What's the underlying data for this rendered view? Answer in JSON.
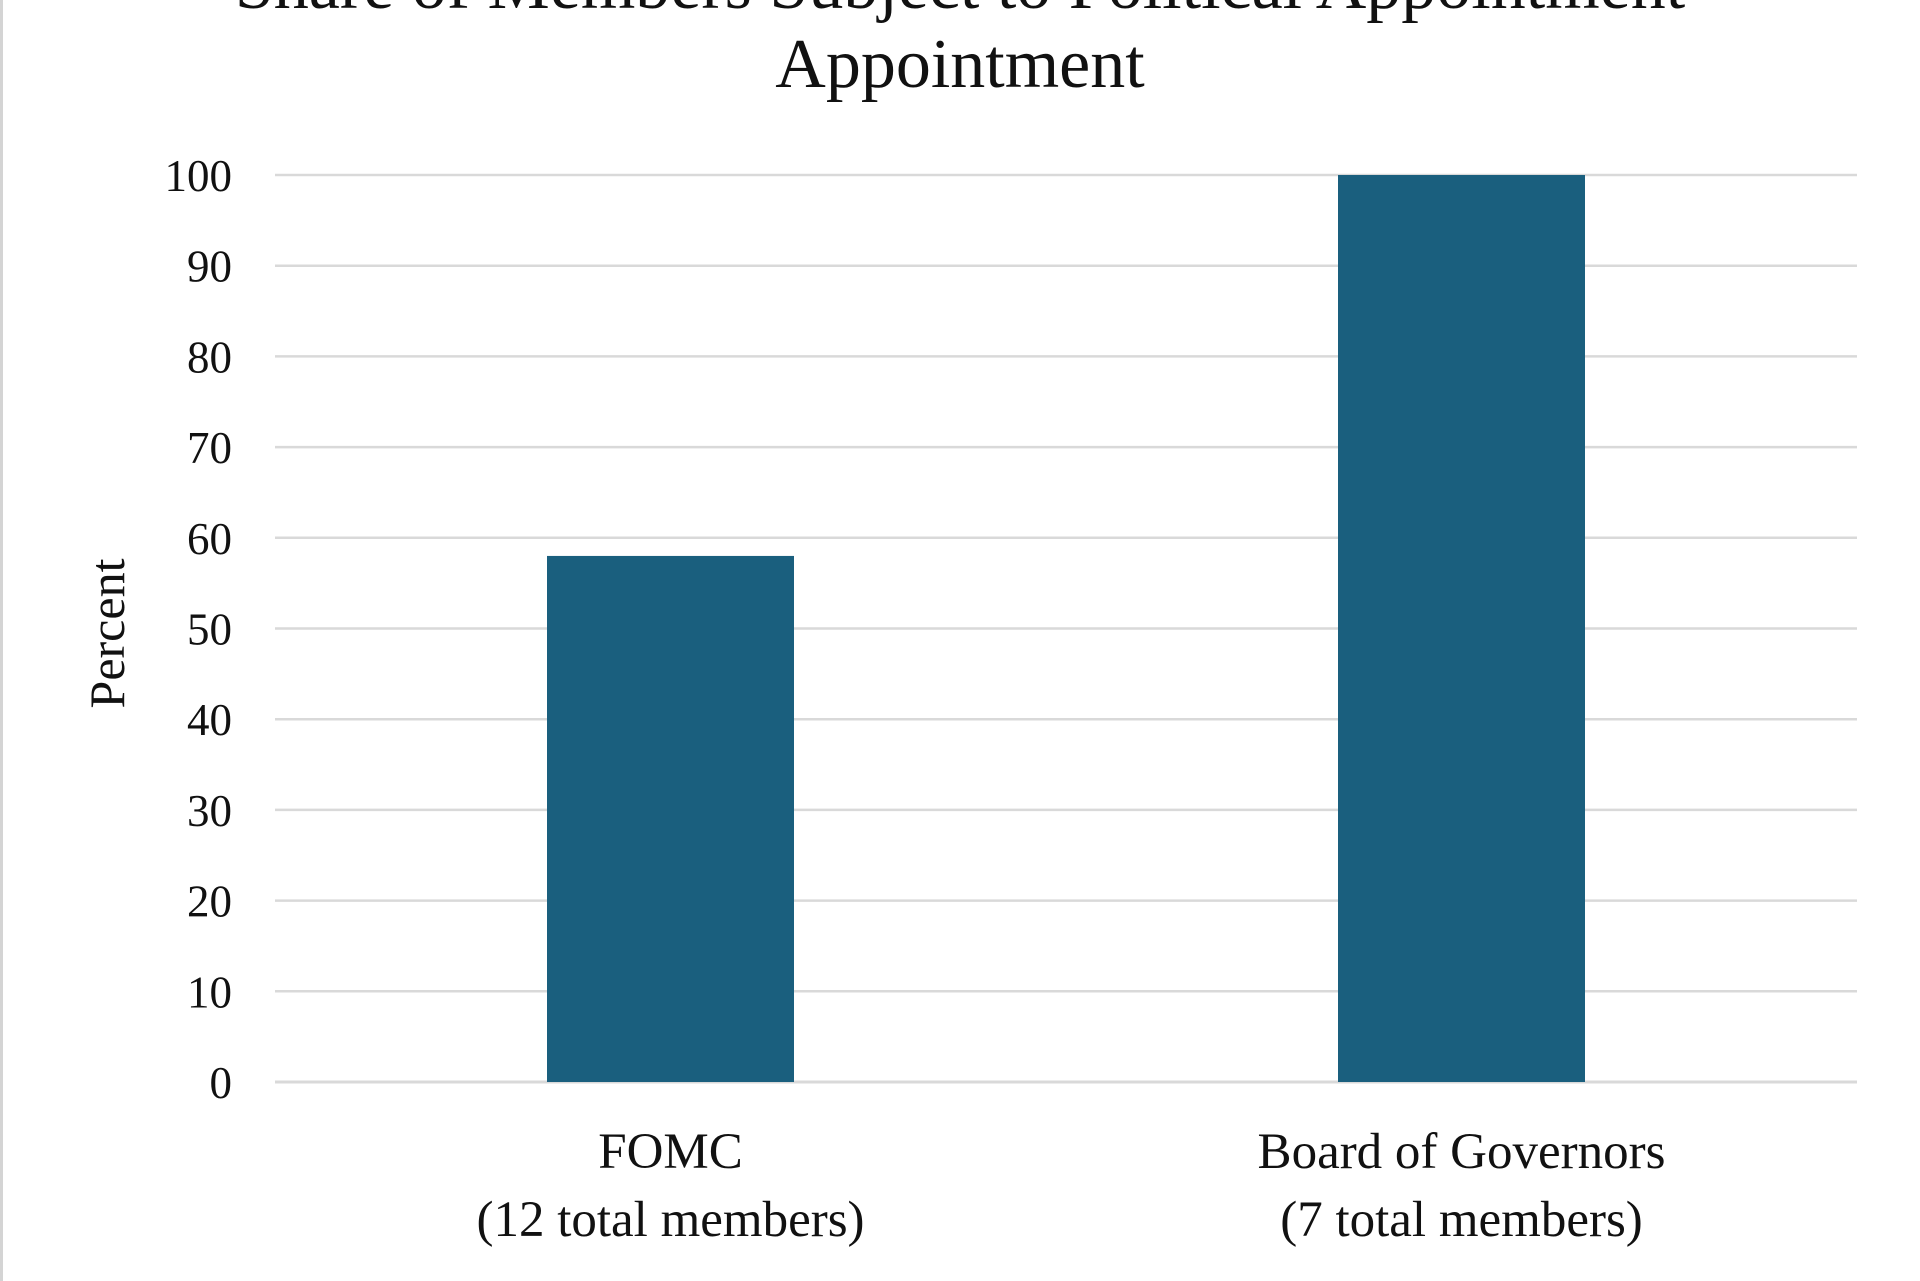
{
  "chart_data": {
    "type": "bar",
    "title_lines": [
      "Share of Members Subject to Political Appointment",
      "Appointment"
    ],
    "title_visible_line": "Appointment",
    "ylabel": "Percent",
    "xlabel": "",
    "ylim": [
      0,
      100
    ],
    "yticks": [
      "0",
      "10",
      "20",
      "30",
      "40",
      "50",
      "60",
      "70",
      "80",
      "90",
      "100"
    ],
    "categories": [
      {
        "line1": "FOMC",
        "line2": "(12 total members)"
      },
      {
        "line1": "Board of Governors",
        "line2": "(7 total members)"
      }
    ],
    "values": [
      58,
      100
    ],
    "grid": true,
    "legend": "none",
    "bar_color": "#1a5f7e"
  }
}
